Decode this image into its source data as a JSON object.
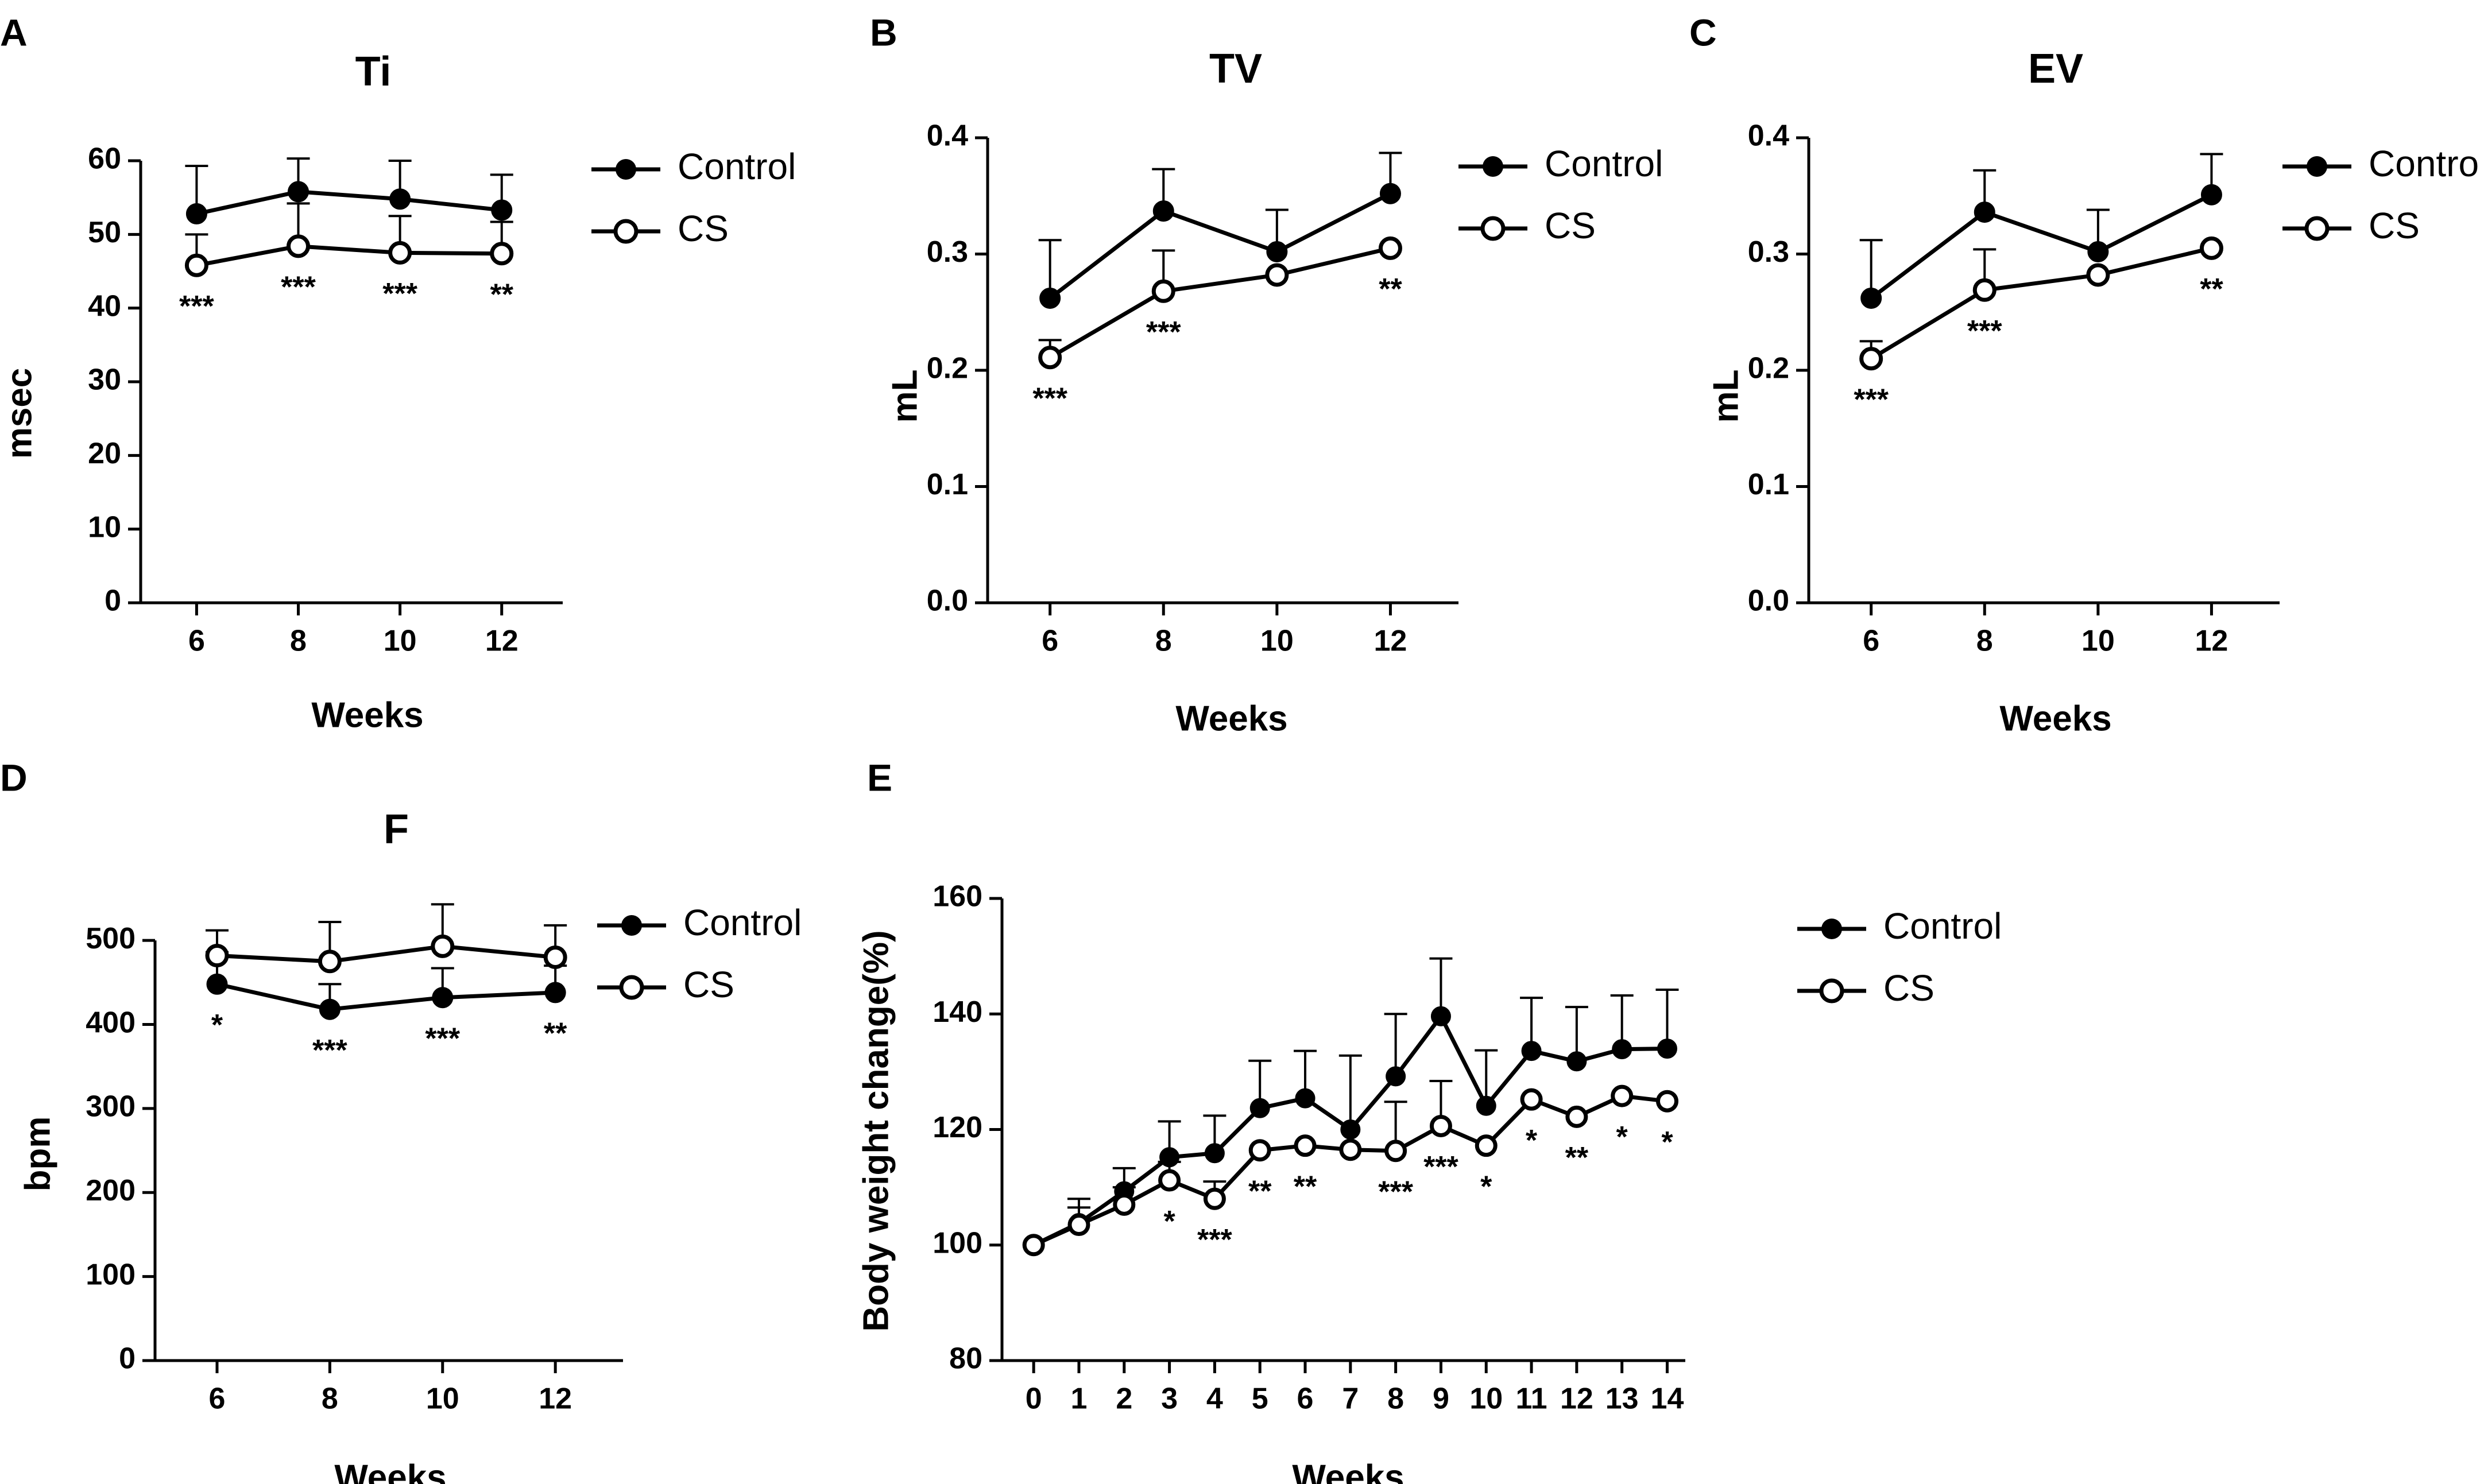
{
  "chart_data": [
    {
      "id": "A",
      "panel_label": "A",
      "type": "line",
      "title": "Ti",
      "xlabel": "Weeks",
      "ylabel": "msec",
      "x": [
        6,
        8,
        10,
        12
      ],
      "xticks": [
        "6",
        "8",
        "10",
        "12"
      ],
      "xlim": [
        4.9,
        13.2
      ],
      "ylim": [
        0,
        60
      ],
      "yticks": [
        "0",
        "10",
        "20",
        "30",
        "40",
        "50",
        "60"
      ],
      "ytick_values": [
        0,
        10,
        20,
        30,
        40,
        50,
        60
      ],
      "series": [
        {
          "name": "Control",
          "marker": "filled",
          "values": [
            52.8,
            55.8,
            54.8,
            53.3
          ],
          "err": [
            6.5,
            4.5,
            5.2,
            4.8
          ],
          "err_dir": "up"
        },
        {
          "name": "CS",
          "marker": "open",
          "values": [
            45.8,
            48.4,
            47.5,
            47.4
          ],
          "err": [
            4.2,
            5.8,
            5.0,
            4.3
          ],
          "err_dir": "up"
        }
      ],
      "annotations": [
        {
          "x": 6,
          "text": "***",
          "anchor_value": 45.8
        },
        {
          "x": 8,
          "text": "***",
          "anchor_value": 48.4
        },
        {
          "x": 10,
          "text": "***",
          "anchor_value": 47.5
        },
        {
          "x": 12,
          "text": "**",
          "anchor_value": 47.4
        }
      ],
      "legend": [
        "Control",
        "CS"
      ],
      "legend_position": "right"
    },
    {
      "id": "B",
      "panel_label": "B",
      "type": "line",
      "title": "TV",
      "xlabel": "Weeks",
      "ylabel": "mL",
      "x": [
        6,
        8,
        10,
        12
      ],
      "xticks": [
        "6",
        "8",
        "10",
        "12"
      ],
      "xlim": [
        4.9,
        13.2
      ],
      "ylim": [
        0,
        0.4
      ],
      "yticks": [
        "0.0",
        "0.1",
        "0.2",
        "0.3",
        "0.4"
      ],
      "ytick_values": [
        0,
        0.1,
        0.2,
        0.3,
        0.4
      ],
      "series": [
        {
          "name": "Control",
          "marker": "filled",
          "values": [
            0.262,
            0.337,
            0.302,
            0.352
          ],
          "err": [
            0.05,
            0.036,
            0.036,
            0.035
          ],
          "err_dir": "up"
        },
        {
          "name": "CS",
          "marker": "open",
          "values": [
            0.211,
            0.268,
            0.282,
            0.305
          ],
          "err": [
            0.015,
            0.035,
            0.0,
            0.0
          ],
          "err_dir": "up"
        }
      ],
      "annotations": [
        {
          "x": 6,
          "text": "***",
          "anchor_value": 0.211
        },
        {
          "x": 8,
          "text": "***",
          "anchor_value": 0.268
        },
        {
          "x": 12,
          "text": "**",
          "anchor_value": 0.305
        }
      ],
      "legend": [
        "Control",
        "CS"
      ],
      "legend_position": "right"
    },
    {
      "id": "C",
      "panel_label": "C",
      "type": "line",
      "title": "EV",
      "xlabel": "Weeks",
      "ylabel": "mL",
      "x": [
        6,
        8,
        10,
        12
      ],
      "xticks": [
        "6",
        "8",
        "10",
        "12"
      ],
      "xlim": [
        4.9,
        13.2
      ],
      "ylim": [
        0,
        0.4
      ],
      "yticks": [
        "0.0",
        "0.1",
        "0.2",
        "0.3",
        "0.4"
      ],
      "ytick_values": [
        0,
        0.1,
        0.2,
        0.3,
        0.4
      ],
      "series": [
        {
          "name": "Control",
          "marker": "filled",
          "values": [
            0.262,
            0.336,
            0.302,
            0.351
          ],
          "err": [
            0.05,
            0.036,
            0.036,
            0.035
          ],
          "err_dir": "up"
        },
        {
          "name": "CS",
          "marker": "open",
          "values": [
            0.21,
            0.269,
            0.282,
            0.305
          ],
          "err": [
            0.015,
            0.035,
            0.0,
            0.0
          ],
          "err_dir": "up"
        }
      ],
      "annotations": [
        {
          "x": 6,
          "text": "***",
          "anchor_value": 0.21
        },
        {
          "x": 8,
          "text": "***",
          "anchor_value": 0.269
        },
        {
          "x": 12,
          "text": "**",
          "anchor_value": 0.305
        }
      ],
      "legend": [
        "Control",
        "CS"
      ],
      "legend_position": "right"
    },
    {
      "id": "D",
      "panel_label": "D",
      "type": "line",
      "title": "F",
      "xlabel": "Weeks",
      "ylabel": "bpm",
      "x": [
        6,
        8,
        10,
        12
      ],
      "xticks": [
        "6",
        "8",
        "10",
        "12"
      ],
      "xlim": [
        4.9,
        13.2
      ],
      "ylim": [
        0,
        550
      ],
      "yticks": [
        "0",
        "100",
        "200",
        "300",
        "400",
        "500"
      ],
      "ytick_values": [
        0,
        100,
        200,
        300,
        400,
        500
      ],
      "series": [
        {
          "name": "Control",
          "marker": "filled",
          "values": [
            448,
            418,
            432,
            438
          ],
          "err": [
            38,
            30,
            35,
            32
          ],
          "err_dir": "up"
        },
        {
          "name": "CS",
          "marker": "open",
          "values": [
            482,
            475,
            493,
            480
          ],
          "err": [
            30,
            47,
            50,
            38
          ],
          "err_dir": "up"
        }
      ],
      "annotations": [
        {
          "x": 6,
          "text": "*",
          "anchor_value": 448
        },
        {
          "x": 8,
          "text": "***",
          "anchor_value": 418
        },
        {
          "x": 10,
          "text": "***",
          "anchor_value": 432
        },
        {
          "x": 12,
          "text": "**",
          "anchor_value": 438
        }
      ],
      "legend": [
        "Control",
        "CS"
      ],
      "legend_position": "right"
    },
    {
      "id": "E",
      "panel_label": "E",
      "type": "line",
      "title": "",
      "xlabel": "Weeks",
      "ylabel": "Body weight change(%)",
      "x": [
        0,
        1,
        2,
        3,
        4,
        5,
        6,
        7,
        8,
        9,
        10,
        11,
        12,
        13,
        14
      ],
      "xticks": [
        "0",
        "1",
        "2",
        "3",
        "4",
        "5",
        "6",
        "7",
        "8",
        "9",
        "10",
        "11",
        "12",
        "13",
        "14"
      ],
      "xlim": [
        -0.7,
        14.4
      ],
      "ylim": [
        80,
        160
      ],
      "yticks": [
        "80",
        "100",
        "120",
        "140",
        "160"
      ],
      "ytick_values": [
        80,
        100,
        120,
        140,
        160
      ],
      "series": [
        {
          "name": "Control",
          "marker": "filled",
          "values": [
            100,
            103.8,
            109.3,
            115.2,
            115.9,
            123.7,
            125.4,
            120.0,
            129.2,
            139.6,
            124.1,
            133.6,
            131.8,
            133.9,
            134.0
          ],
          "err": [
            0,
            4.2,
            4.0,
            6.2,
            6.5,
            8.2,
            8.2,
            12.8,
            10.8,
            10.0,
            9.6,
            9.2,
            9.4,
            9.3,
            10.2
          ],
          "err_dir": "up"
        },
        {
          "name": "CS",
          "marker": "open",
          "values": [
            100,
            103.5,
            107.0,
            111.2,
            108.0,
            116.4,
            117.2,
            116.5,
            116.3,
            120.6,
            117.2,
            125.2,
            122.2,
            125.8,
            124.9
          ],
          "err": [
            0,
            3.0,
            3.0,
            3.2,
            3.0,
            0.0,
            0.0,
            0.0,
            8.5,
            7.8,
            0.0,
            0.0,
            0.0,
            0.0,
            0.0
          ],
          "err_dir": "up"
        }
      ],
      "annotations": [
        {
          "x": 3,
          "text": "*",
          "anchor_value": 111.2
        },
        {
          "x": 4,
          "text": "***",
          "anchor_value": 108.0
        },
        {
          "x": 5,
          "text": "**",
          "anchor_value": 116.4
        },
        {
          "x": 6,
          "text": "**",
          "anchor_value": 117.2
        },
        {
          "x": 8,
          "text": "***",
          "anchor_value": 116.3
        },
        {
          "x": 9,
          "text": "***",
          "anchor_value": 120.6
        },
        {
          "x": 10,
          "text": "*",
          "anchor_value": 117.2
        },
        {
          "x": 11,
          "text": "*",
          "anchor_value": 125.2
        },
        {
          "x": 12,
          "text": "**",
          "anchor_value": 122.2
        },
        {
          "x": 13,
          "text": "*",
          "anchor_value": 125.8
        },
        {
          "x": 14,
          "text": "*",
          "anchor_value": 124.9
        }
      ],
      "legend": [
        "Control",
        "CS"
      ],
      "legend_position": "right"
    }
  ]
}
